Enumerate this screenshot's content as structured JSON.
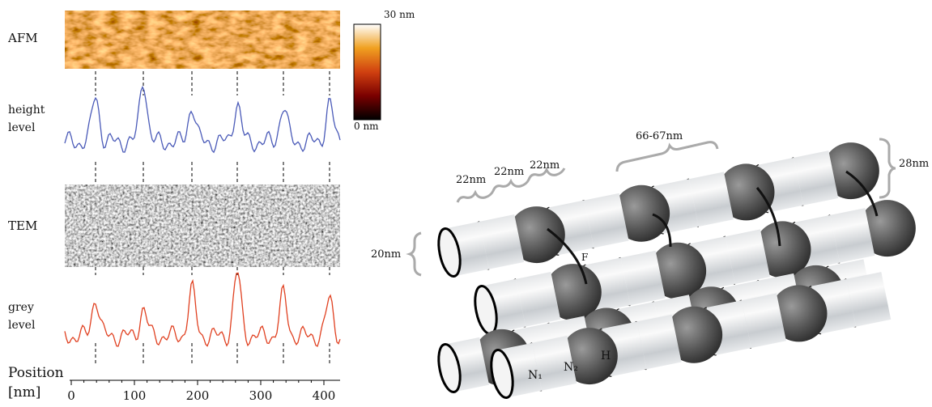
{
  "left_panel": {
    "afm_label": "AFM",
    "height_label": [
      "height",
      "level"
    ],
    "tem_label": "TEM",
    "grey_label": [
      "grey",
      "level"
    ],
    "axis_label": [
      "Position",
      "[nm]"
    ],
    "axis_ticks": [
      0,
      100,
      200,
      300,
      400
    ],
    "colorbar": {
      "top": "30 nm",
      "bottom": "0 nm"
    }
  },
  "right_panel": {
    "period": "66-67nm",
    "segments": [
      "22nm",
      "22nm",
      "22nm"
    ],
    "sphere_diameter": "28nm",
    "fiber_diameter": "20nm",
    "F": "F",
    "N1": "N₁",
    "N2": "N₂",
    "H": "H"
  }
}
